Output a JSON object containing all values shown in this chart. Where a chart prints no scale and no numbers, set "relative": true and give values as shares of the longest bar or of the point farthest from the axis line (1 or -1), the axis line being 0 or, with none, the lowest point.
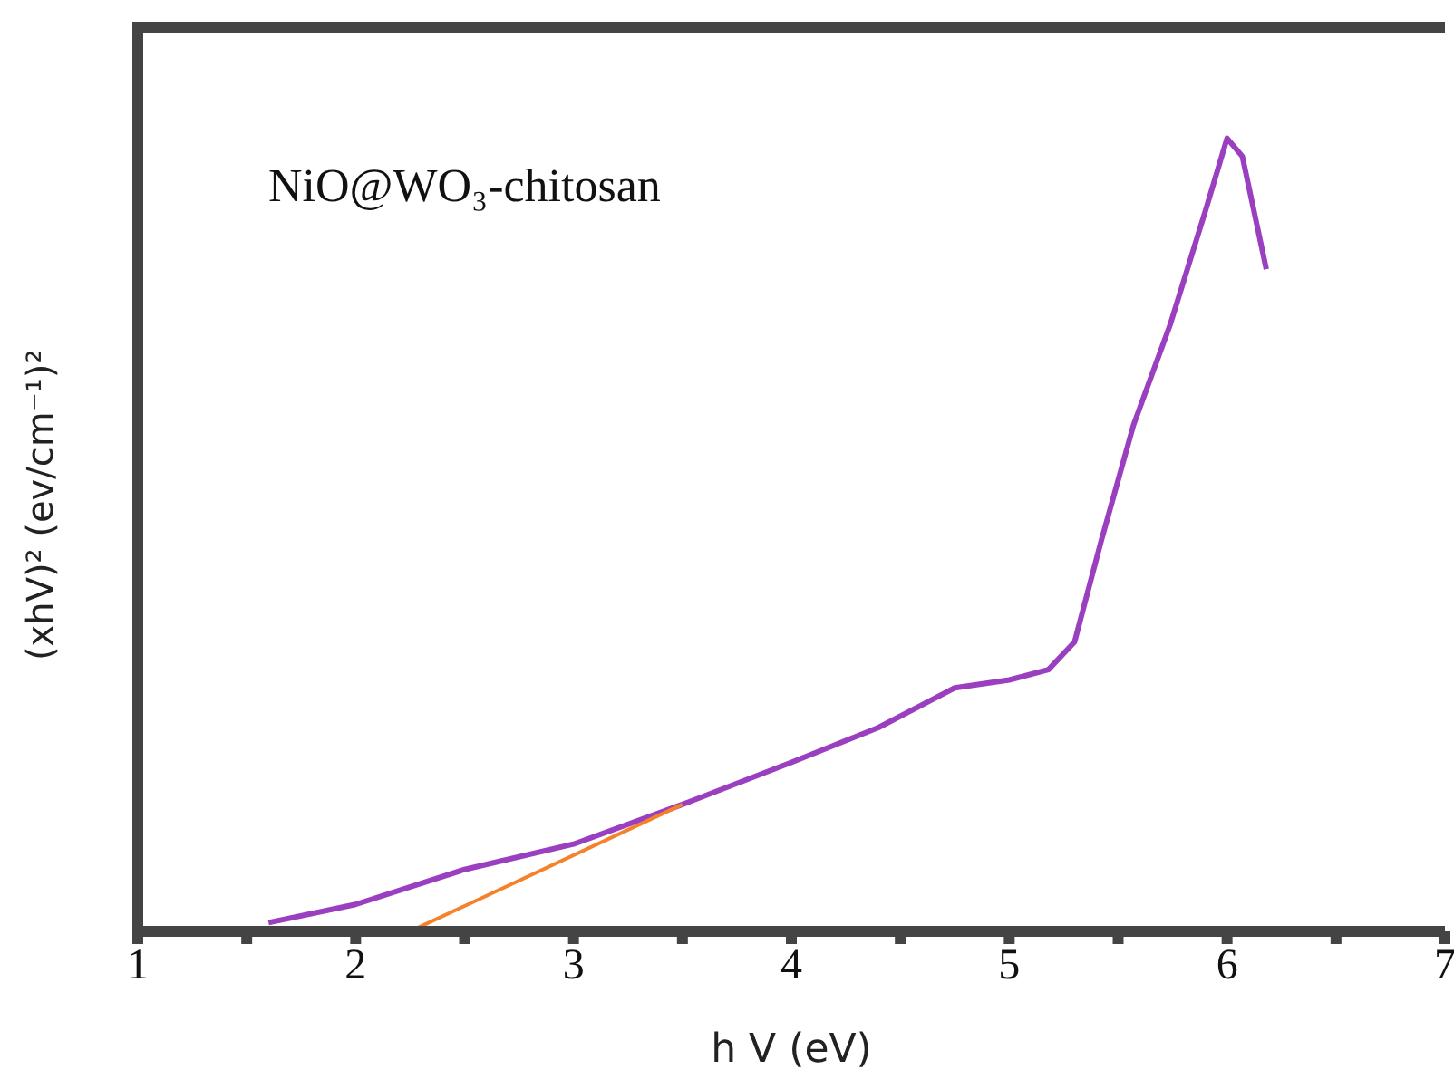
{
  "chart_data": {
    "type": "line",
    "relative": true,
    "xlabel": "h V (eV)",
    "ylabel": "(xhV)² (ev/cm⁻¹)²",
    "annotations": [
      "NiO@WO₃-chitosan"
    ],
    "xlim": [
      1,
      7
    ],
    "xticks": [
      1,
      {
        "value": 1.5,
        "label": null
      },
      2,
      {
        "value": 2.5,
        "label": null
      },
      3,
      {
        "value": 3.5,
        "label": null
      },
      4,
      {
        "value": 4.5,
        "label": null
      },
      5,
      {
        "value": 5.5,
        "label": null
      },
      6,
      {
        "value": 6.5,
        "label": null
      },
      7
    ],
    "marker": "none",
    "line_style": "solid",
    "series": [
      {
        "color": "#9a3fc0",
        "x": [
          1.6,
          2.0,
          2.5,
          3.0,
          3.5,
          4.0,
          4.4,
          4.75,
          5.0,
          5.18,
          5.3,
          5.42,
          5.57,
          5.74,
          5.9,
          6.0,
          6.07,
          6.18
        ],
        "values": [
          0.011,
          0.034,
          0.078,
          0.11,
          0.16,
          0.213,
          0.257,
          0.307,
          0.317,
          0.33,
          0.365,
          0.49,
          0.638,
          0.766,
          0.908,
          1,
          0.977,
          0.835
        ]
      },
      {
        "color": "#f5822a",
        "x": [
          2.25,
          3.5
        ],
        "values": [
          0,
          0.16
        ]
      }
    ]
  }
}
